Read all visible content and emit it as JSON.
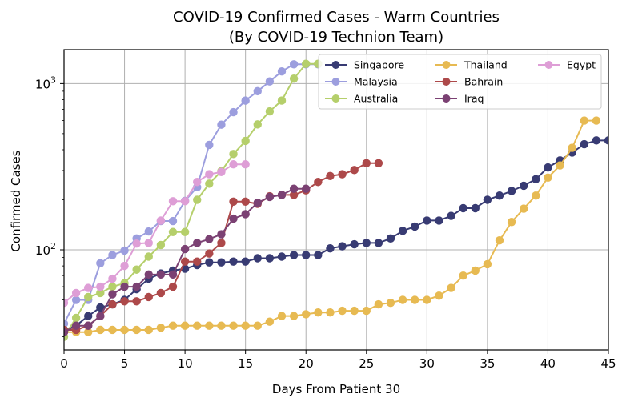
{
  "chart_data": {
    "type": "line",
    "title": "COVID-19 Confirmed Cases - Warm Countries",
    "subtitle": "(By COVID-19 Technion Team)",
    "xlabel": "Days From Patient 30",
    "ylabel": "Confirmed Cases",
    "xlim": [
      0,
      45
    ],
    "ylim": [
      25,
      1600
    ],
    "yscale": "log",
    "grid": true,
    "legend_position": "top-right",
    "x_ticks": [
      0,
      5,
      10,
      15,
      20,
      25,
      30,
      35,
      40,
      45
    ],
    "x_tick_labels": [
      "0",
      "5",
      "10",
      "15",
      "20",
      "25",
      "30",
      "35",
      "40",
      "45"
    ],
    "y_ticks": [
      {
        "value": 100,
        "base": "10",
        "exp": "2"
      },
      {
        "value": 1000,
        "base": "10",
        "exp": "3"
      }
    ],
    "series": [
      {
        "name": "Singapore",
        "color": "#383b73",
        "x": [
          0,
          1,
          2,
          3,
          4,
          5,
          6,
          7,
          8,
          9,
          10,
          11,
          12,
          13,
          14,
          15,
          16,
          17,
          18,
          19,
          20,
          21,
          22,
          23,
          24,
          25,
          26,
          27,
          28,
          29,
          30,
          31,
          32,
          33,
          34,
          35,
          36,
          37,
          38,
          39,
          40,
          41,
          42,
          43,
          44,
          45
        ],
        "y": [
          33,
          35,
          40,
          45,
          47,
          50,
          58,
          67,
          72,
          75,
          77,
          81,
          84,
          84,
          85,
          85,
          89,
          89,
          91,
          93,
          93,
          93,
          102,
          105,
          108,
          110,
          110,
          117,
          130,
          138,
          150,
          150,
          160,
          178,
          178,
          200,
          212,
          226,
          243,
          266,
          313,
          345,
          385,
          432,
          455,
          455
        ]
      },
      {
        "name": "Malaysia",
        "color": "#9c9ede",
        "x": [
          0,
          1,
          2,
          3,
          4,
          5,
          6,
          7,
          8,
          9,
          10,
          11,
          12,
          13,
          14,
          15,
          16,
          17,
          18,
          19,
          20,
          21
        ],
        "y": [
          36,
          50,
          50,
          83,
          93,
          99,
          117,
          129,
          149,
          149,
          197,
          238,
          428,
          566,
          673,
          790,
          900,
          1030,
          1183,
          1306,
          1306,
          1306
        ]
      },
      {
        "name": "Australia",
        "color": "#b5cf6b",
        "x": [
          0,
          1,
          2,
          3,
          4,
          5,
          6,
          7,
          8,
          9,
          10,
          11,
          12,
          13,
          14,
          15,
          16,
          17,
          18,
          19,
          20,
          21
        ],
        "y": [
          30,
          39,
          52,
          55,
          60,
          63,
          76,
          91,
          107,
          128,
          128,
          200,
          250,
          297,
          377,
          452,
          568,
          681,
          791,
          1071,
          1314,
          1314
        ]
      },
      {
        "name": "Thailand",
        "color": "#e7ba52",
        "x": [
          0,
          1,
          2,
          3,
          4,
          5,
          6,
          7,
          8,
          9,
          10,
          11,
          12,
          13,
          14,
          15,
          16,
          17,
          18,
          19,
          20,
          21,
          22,
          23,
          24,
          25,
          26,
          27,
          28,
          29,
          30,
          31,
          32,
          33,
          34,
          35,
          36,
          37,
          38,
          39,
          40,
          41,
          42,
          43,
          44
        ],
        "y": [
          32,
          32,
          32,
          33,
          33,
          33,
          33,
          33,
          34,
          35,
          35,
          35,
          35,
          35,
          35,
          35,
          35,
          37,
          40,
          40,
          41,
          42,
          42,
          43,
          43,
          43,
          47,
          48,
          50,
          50,
          50,
          53,
          59,
          70,
          75,
          82,
          114,
          147,
          177,
          212,
          272,
          322,
          411,
          599,
          599
        ]
      },
      {
        "name": "Bahrain",
        "color": "#ad494a",
        "x": [
          0,
          1,
          2,
          3,
          4,
          5,
          6,
          7,
          8,
          9,
          10,
          11,
          12,
          13,
          14,
          15,
          16,
          17,
          18,
          19,
          20,
          21,
          22,
          23,
          24,
          25,
          26
        ],
        "y": [
          33,
          33,
          35,
          40,
          47,
          49,
          49,
          52,
          55,
          60,
          85,
          85,
          95,
          110,
          195,
          195,
          189,
          210,
          214,
          214,
          228,
          256,
          278,
          285,
          302,
          332,
          332
        ]
      },
      {
        "name": "Iraq",
        "color": "#7b4173",
        "x": [
          0,
          1,
          2,
          3,
          4,
          5,
          6,
          7,
          8,
          9,
          10,
          11,
          12,
          13,
          14,
          15,
          16,
          17,
          18,
          19,
          20
        ],
        "y": [
          32,
          35,
          35,
          40,
          54,
          60,
          60,
          71,
          71,
          71,
          101,
          110,
          116,
          124,
          154,
          164,
          192,
          208,
          214,
          233,
          233
        ]
      },
      {
        "name": "Egypt",
        "color": "#de9ed6",
        "x": [
          0,
          1,
          2,
          3,
          4,
          5,
          6,
          7,
          8,
          9,
          10,
          11,
          12,
          13,
          14,
          15
        ],
        "y": [
          48,
          55,
          59,
          60,
          67,
          80,
          109,
          110,
          150,
          196,
          196,
          256,
          285,
          294,
          327,
          327
        ]
      }
    ]
  }
}
